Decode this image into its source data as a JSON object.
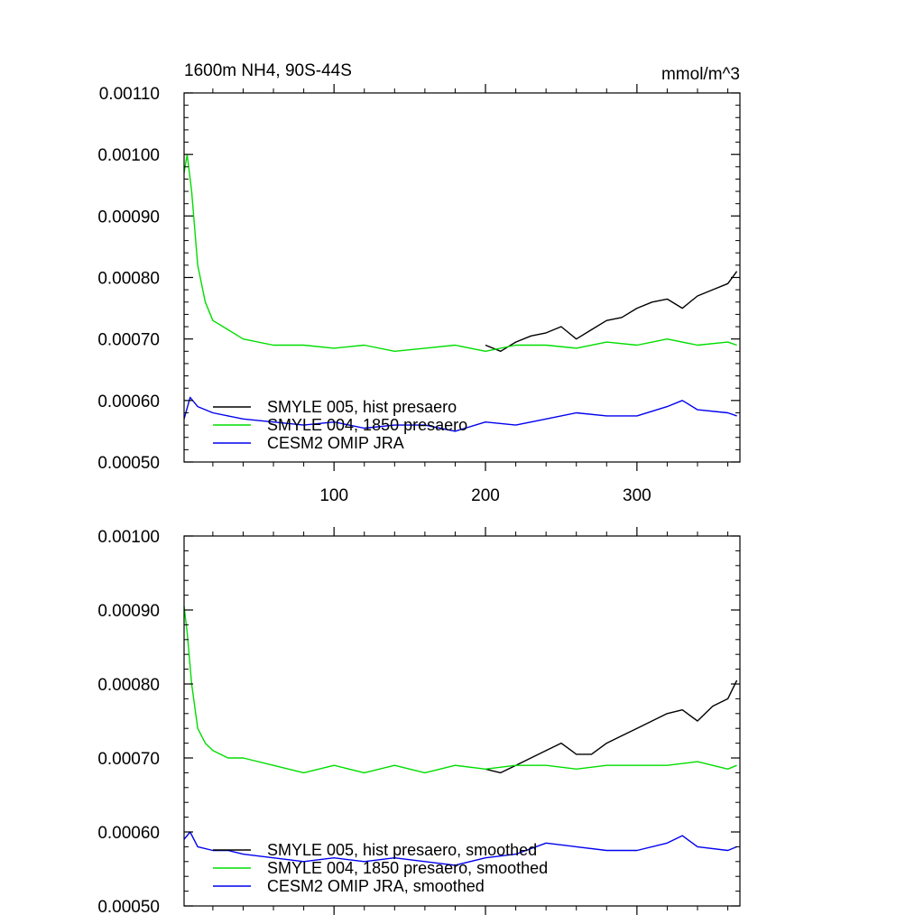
{
  "figure": {
    "title_left": "1600m NH4, 90S-44S",
    "title_right": "mmol/m^3"
  },
  "chart_data": [
    {
      "type": "line",
      "xlim": [
        1,
        368
      ],
      "ylim": [
        0.0005,
        0.0011
      ],
      "yticks": [
        "0.00050",
        "0.00060",
        "0.00070",
        "0.00080",
        "0.00090",
        "0.00100",
        "0.00110"
      ],
      "xticks": [
        "100",
        "200",
        "300"
      ],
      "xtick_values": [
        100,
        200,
        300
      ],
      "grid": false,
      "legend_position": "lower-left",
      "series": [
        {
          "name": "SMYLE 005, hist presaero",
          "color": "#000000",
          "x": [
            200,
            210,
            220,
            230,
            240,
            250,
            260,
            270,
            280,
            290,
            300,
            310,
            320,
            330,
            340,
            350,
            360,
            366
          ],
          "y": [
            0.00069,
            0.00068,
            0.000695,
            0.000705,
            0.00071,
            0.00072,
            0.0007,
            0.000715,
            0.00073,
            0.000735,
            0.00075,
            0.00076,
            0.000765,
            0.00075,
            0.00077,
            0.00078,
            0.00079,
            0.00081
          ]
        },
        {
          "name": "SMYLE 004, 1850 presaero",
          "color": "#00dd00",
          "x": [
            1,
            3,
            6,
            10,
            15,
            20,
            30,
            40,
            60,
            80,
            100,
            120,
            140,
            160,
            180,
            200,
            220,
            240,
            260,
            280,
            300,
            320,
            340,
            360,
            366
          ],
          "y": [
            0.00097,
            0.001,
            0.00094,
            0.00082,
            0.00076,
            0.00073,
            0.000715,
            0.0007,
            0.00069,
            0.00069,
            0.000685,
            0.00069,
            0.00068,
            0.000685,
            0.00069,
            0.00068,
            0.00069,
            0.00069,
            0.000685,
            0.000695,
            0.00069,
            0.0007,
            0.00069,
            0.000695,
            0.00069
          ]
        },
        {
          "name": "CESM2 OMIP JRA",
          "color": "#0000ee",
          "x": [
            1,
            5,
            10,
            20,
            30,
            40,
            60,
            80,
            100,
            120,
            140,
            160,
            180,
            200,
            220,
            240,
            260,
            280,
            300,
            320,
            330,
            340,
            360,
            366
          ],
          "y": [
            0.00057,
            0.000605,
            0.00059,
            0.00058,
            0.000575,
            0.00057,
            0.000565,
            0.00056,
            0.000565,
            0.000555,
            0.00056,
            0.00056,
            0.00055,
            0.000565,
            0.00056,
            0.00057,
            0.00058,
            0.000575,
            0.000575,
            0.00059,
            0.0006,
            0.000585,
            0.00058,
            0.000575
          ]
        }
      ]
    },
    {
      "type": "line",
      "xlim": [
        1,
        368
      ],
      "ylim": [
        0.0005,
        0.001
      ],
      "yticks": [
        "0.00050",
        "0.00060",
        "0.00070",
        "0.00080",
        "0.00090",
        "0.00100"
      ],
      "xticks": [
        "",
        "",
        ""
      ],
      "xtick_values": [
        100,
        200,
        300
      ],
      "grid": false,
      "legend_position": "lower-left",
      "series": [
        {
          "name": "SMYLE 005, hist presaero, smoothed",
          "color": "#000000",
          "x": [
            200,
            210,
            220,
            230,
            240,
            250,
            260,
            270,
            280,
            290,
            300,
            310,
            320,
            330,
            340,
            350,
            360,
            366
          ],
          "y": [
            0.000685,
            0.00068,
            0.00069,
            0.0007,
            0.00071,
            0.00072,
            0.000705,
            0.000705,
            0.00072,
            0.00073,
            0.00074,
            0.00075,
            0.00076,
            0.000765,
            0.00075,
            0.00077,
            0.00078,
            0.000805
          ]
        },
        {
          "name": "SMYLE 004, 1850 presaero, smoothed",
          "color": "#00dd00",
          "x": [
            1,
            3,
            6,
            10,
            15,
            20,
            30,
            40,
            60,
            80,
            100,
            120,
            140,
            160,
            180,
            200,
            220,
            240,
            260,
            280,
            300,
            320,
            340,
            360,
            366
          ],
          "y": [
            0.000905,
            0.00087,
            0.0008,
            0.00074,
            0.00072,
            0.00071,
            0.0007,
            0.0007,
            0.00069,
            0.00068,
            0.00069,
            0.00068,
            0.00069,
            0.00068,
            0.00069,
            0.000685,
            0.00069,
            0.00069,
            0.000685,
            0.00069,
            0.00069,
            0.00069,
            0.000695,
            0.000685,
            0.00069
          ]
        },
        {
          "name": "CESM2 OMIP JRA, smoothed",
          "color": "#0000ee",
          "x": [
            1,
            5,
            10,
            20,
            30,
            40,
            60,
            80,
            100,
            120,
            140,
            160,
            180,
            200,
            220,
            240,
            260,
            280,
            300,
            320,
            330,
            340,
            360,
            366
          ],
          "y": [
            0.00059,
            0.0006,
            0.00058,
            0.000575,
            0.000575,
            0.00057,
            0.000565,
            0.00056,
            0.000565,
            0.00056,
            0.000565,
            0.00056,
            0.000555,
            0.000565,
            0.00057,
            0.000585,
            0.00058,
            0.000575,
            0.000575,
            0.000585,
            0.000595,
            0.00058,
            0.000575,
            0.00058
          ]
        }
      ]
    }
  ]
}
